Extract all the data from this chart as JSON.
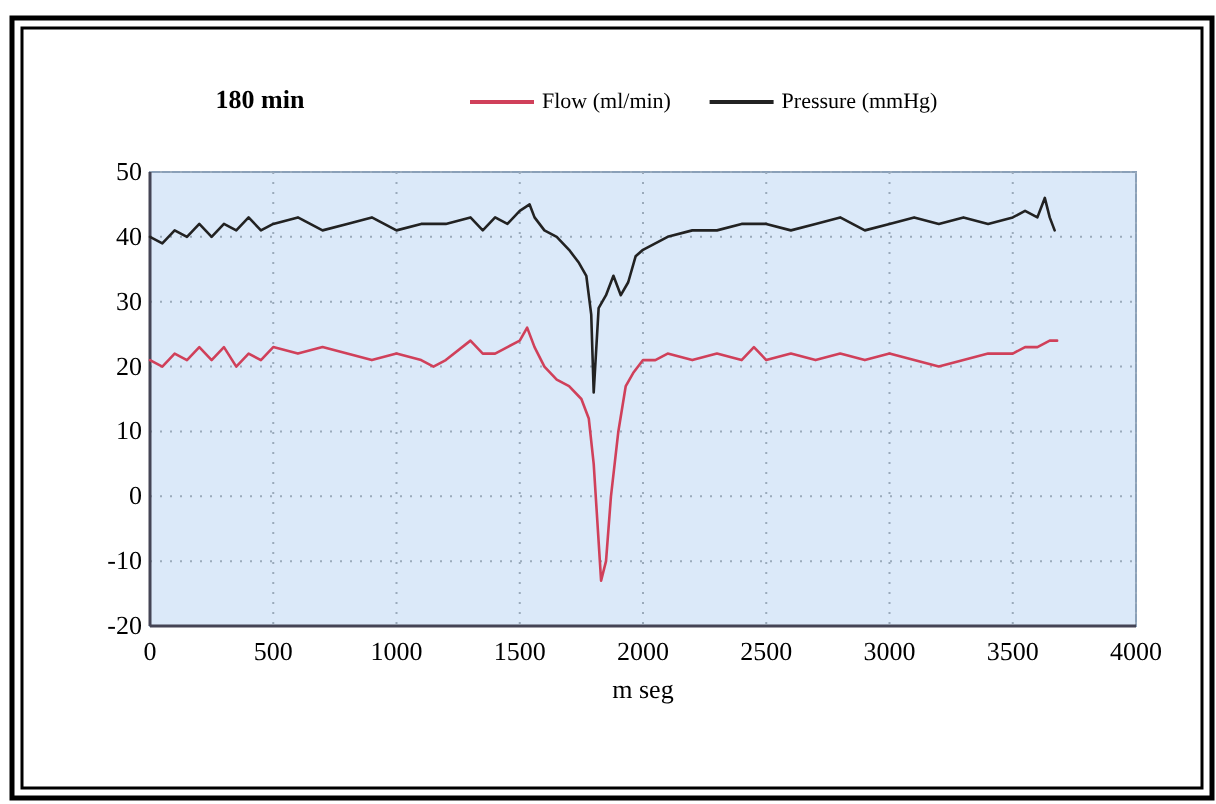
{
  "chart_data": {
    "type": "line",
    "title": "180 min",
    "xlabel": "m seg",
    "xlim": [
      0,
      4000
    ],
    "xticks": [
      0,
      500,
      1000,
      1500,
      2000,
      2500,
      3000,
      3500,
      4000
    ],
    "ylim": [
      -20,
      50
    ],
    "yticks": [
      -20,
      -10,
      0,
      10,
      20,
      30,
      40,
      50
    ],
    "grid": true,
    "legend": "top right",
    "line_style": "solid",
    "series": [
      {
        "name": "Flow (ml/min)",
        "color": "#d0405a",
        "x": [
          0,
          50,
          100,
          150,
          200,
          250,
          300,
          350,
          400,
          450,
          500,
          600,
          700,
          800,
          900,
          1000,
          1100,
          1150,
          1200,
          1300,
          1350,
          1400,
          1450,
          1500,
          1530,
          1560,
          1600,
          1650,
          1700,
          1750,
          1780,
          1800,
          1830,
          1850,
          1870,
          1900,
          1930,
          1960,
          2000,
          2050,
          2100,
          2200,
          2300,
          2400,
          2450,
          2500,
          2600,
          2700,
          2800,
          2900,
          3000,
          3100,
          3200,
          3300,
          3400,
          3500,
          3550,
          3600,
          3650,
          3680
        ],
        "values": [
          21,
          20,
          22,
          21,
          23,
          21,
          23,
          20,
          22,
          21,
          23,
          22,
          23,
          22,
          21,
          22,
          21,
          20,
          21,
          24,
          22,
          22,
          23,
          24,
          26,
          23,
          20,
          18,
          17,
          15,
          12,
          5,
          -13,
          -10,
          0,
          10,
          17,
          19,
          21,
          21,
          22,
          21,
          22,
          21,
          23,
          21,
          22,
          21,
          22,
          21,
          22,
          21,
          20,
          21,
          22,
          22,
          23,
          23,
          24,
          24
        ]
      },
      {
        "name": "Pressure (mmHg)",
        "color": "#222222",
        "x": [
          0,
          50,
          100,
          150,
          200,
          250,
          300,
          350,
          400,
          450,
          500,
          600,
          700,
          800,
          900,
          1000,
          1100,
          1200,
          1300,
          1350,
          1400,
          1450,
          1500,
          1540,
          1560,
          1600,
          1650,
          1700,
          1740,
          1770,
          1790,
          1800,
          1820,
          1850,
          1880,
          1910,
          1940,
          1970,
          2000,
          2050,
          2100,
          2200,
          2300,
          2400,
          2500,
          2600,
          2700,
          2800,
          2900,
          3000,
          3100,
          3200,
          3300,
          3400,
          3500,
          3550,
          3600,
          3630,
          3650,
          3670
        ],
        "values": [
          40,
          39,
          41,
          40,
          42,
          40,
          42,
          41,
          43,
          41,
          42,
          43,
          41,
          42,
          43,
          41,
          42,
          42,
          43,
          41,
          43,
          42,
          44,
          45,
          43,
          41,
          40,
          38,
          36,
          34,
          28,
          16,
          29,
          31,
          34,
          31,
          33,
          37,
          38,
          39,
          40,
          41,
          41,
          42,
          42,
          41,
          42,
          43,
          41,
          42,
          43,
          42,
          43,
          42,
          43,
          44,
          43,
          46,
          43,
          41
        ]
      }
    ]
  }
}
